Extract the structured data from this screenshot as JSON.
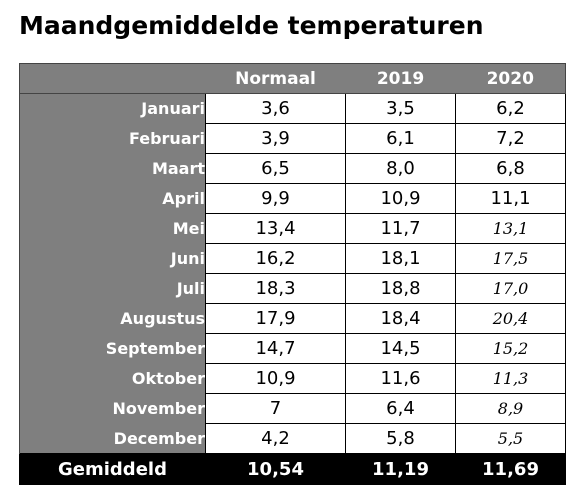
{
  "title": "Maandgemiddelde temperaturen",
  "table": {
    "corner": "",
    "columns": [
      "Normaal",
      "2019",
      "2020"
    ],
    "rows": [
      {
        "month": "Januari",
        "normaal": "3,6",
        "y2019": "3,5",
        "y2020": "6,2",
        "y2020_italic": false
      },
      {
        "month": "Februari",
        "normaal": "3,9",
        "y2019": "6,1",
        "y2020": "7,2",
        "y2020_italic": false
      },
      {
        "month": "Maart",
        "normaal": "6,5",
        "y2019": "8,0",
        "y2020": "6,8",
        "y2020_italic": false
      },
      {
        "month": "April",
        "normaal": "9,9",
        "y2019": "10,9",
        "y2020": "11,1",
        "y2020_italic": false
      },
      {
        "month": "Mei",
        "normaal": "13,4",
        "y2019": "11,7",
        "y2020": "13,1",
        "y2020_italic": true
      },
      {
        "month": "Juni",
        "normaal": "16,2",
        "y2019": "18,1",
        "y2020": "17,5",
        "y2020_italic": true
      },
      {
        "month": "Juli",
        "normaal": "18,3",
        "y2019": "18,8",
        "y2020": "17,0",
        "y2020_italic": true
      },
      {
        "month": "Augustus",
        "normaal": "17,9",
        "y2019": "18,4",
        "y2020": "20,4",
        "y2020_italic": true
      },
      {
        "month": "September",
        "normaal": "14,7",
        "y2019": "14,5",
        "y2020": "15,2",
        "y2020_italic": true
      },
      {
        "month": "Oktober",
        "normaal": "10,9",
        "y2019": "11,6",
        "y2020": "11,3",
        "y2020_italic": true
      },
      {
        "month": "November",
        "normaal": "7",
        "y2019": "6,4",
        "y2020": "8,9",
        "y2020_italic": true
      },
      {
        "month": "December",
        "normaal": "4,2",
        "y2019": "5,8",
        "y2020": "5,5",
        "y2020_italic": true
      }
    ],
    "footer": {
      "label": "Gemiddeld",
      "normaal": "10,54",
      "y2019": "11,19",
      "y2020": "11,69"
    }
  },
  "colors": {
    "header_bg": "#7f7f7f",
    "header_text": "#ffffff",
    "footer_bg": "#000000",
    "cell_border": "#000000"
  }
}
